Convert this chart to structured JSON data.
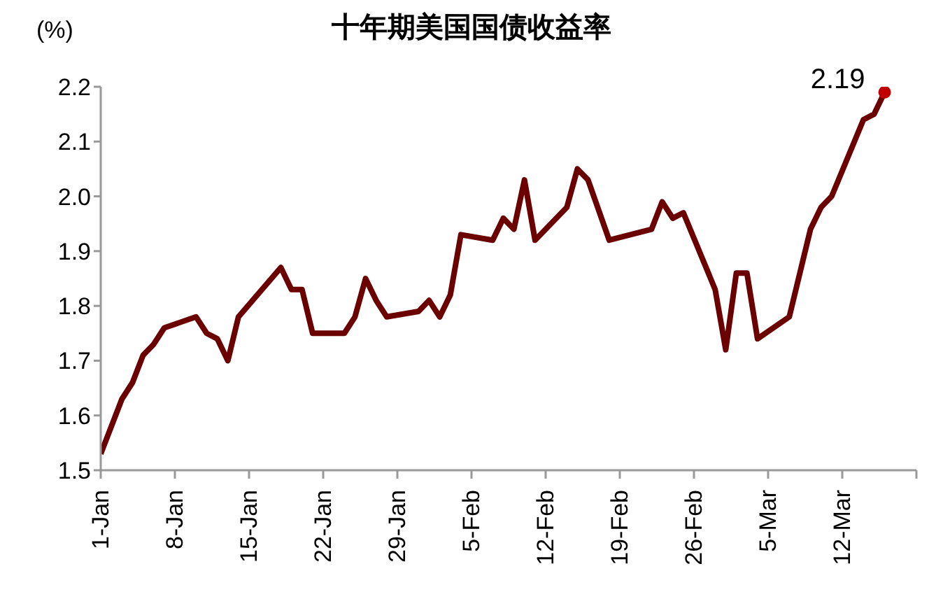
{
  "chart_data": {
    "type": "line",
    "title": "十年期美国国债收益率",
    "ylabel": "(%)",
    "xlim": [
      "--01-01",
      "--03-19"
    ],
    "xticks": [
      {
        "value": "--01-01",
        "label": "1-Jan"
      },
      {
        "value": "--01-08",
        "label": "8-Jan"
      },
      {
        "value": "--01-15",
        "label": "15-Jan"
      },
      {
        "value": "--01-22",
        "label": "22-Jan"
      },
      {
        "value": "--01-29",
        "label": "29-Jan"
      },
      {
        "value": "--02-05",
        "label": "5-Feb"
      },
      {
        "value": "--02-12",
        "label": "12-Feb"
      },
      {
        "value": "--02-19",
        "label": "19-Feb"
      },
      {
        "value": "--02-26",
        "label": "26-Feb"
      },
      {
        "value": "--03-05",
        "label": "5-Mar"
      },
      {
        "value": "--03-12",
        "label": "12-Mar"
      },
      {
        "value": "--03-19",
        "label": null
      }
    ],
    "ylim": [
      1.5,
      2.2
    ],
    "yticks": [
      1.5,
      1.6,
      1.7,
      1.8,
      1.9,
      {
        "value": 2,
        "label": "2.0"
      },
      2.1,
      2.2
    ],
    "grid": false,
    "marker": "none",
    "line_style": "solid",
    "series": [
      {
        "type": "line",
        "color": "#6b0000",
        "x": [
          "--01-01",
          "--01-03",
          "--01-04",
          "--01-05",
          "--01-06",
          "--01-07",
          "--01-10",
          "--01-11",
          "--01-12",
          "--01-13",
          "--01-14",
          "--01-18",
          "--01-19",
          "--01-20",
          "--01-21",
          "--01-24",
          "--01-25",
          "--01-26",
          "--01-27",
          "--01-28",
          "--01-31",
          "--02-01",
          "--02-02",
          "--02-03",
          "--02-04",
          "--02-07",
          "--02-08",
          "--02-09",
          "--02-10",
          "--02-11",
          "--02-14",
          "--02-15",
          "--02-16",
          "--02-18",
          "--02-22",
          "--02-23",
          "--02-24",
          "--02-25",
          "--02-28",
          "--03-01",
          "--03-02",
          "--03-03",
          "--03-04",
          "--03-07",
          "--03-09",
          "--03-10",
          "--03-11",
          "--03-14",
          "--03-15",
          "--03-16"
        ],
        "values": [
          1.53,
          1.63,
          1.66,
          1.71,
          1.73,
          1.76,
          1.78,
          1.75,
          1.74,
          1.7,
          1.78,
          1.87,
          1.83,
          1.83,
          1.75,
          1.75,
          1.78,
          1.85,
          1.81,
          1.78,
          1.79,
          1.81,
          1.78,
          1.82,
          1.93,
          1.92,
          1.96,
          1.94,
          2.03,
          1.92,
          1.98,
          2.05,
          2.03,
          1.92,
          1.94,
          1.99,
          1.96,
          1.97,
          1.83,
          1.72,
          1.86,
          1.86,
          1.74,
          1.78,
          1.94,
          1.98,
          2.0,
          2.14,
          2.15,
          2.19
        ]
      },
      {
        "type": "scatter",
        "color": "#c00000",
        "marker": "circle",
        "x": [
          "--03-16"
        ],
        "values": [
          2.19
        ]
      }
    ],
    "annotations": [
      {
        "text": "2.19",
        "x": "--03-16",
        "y": 2.19
      }
    ]
  }
}
